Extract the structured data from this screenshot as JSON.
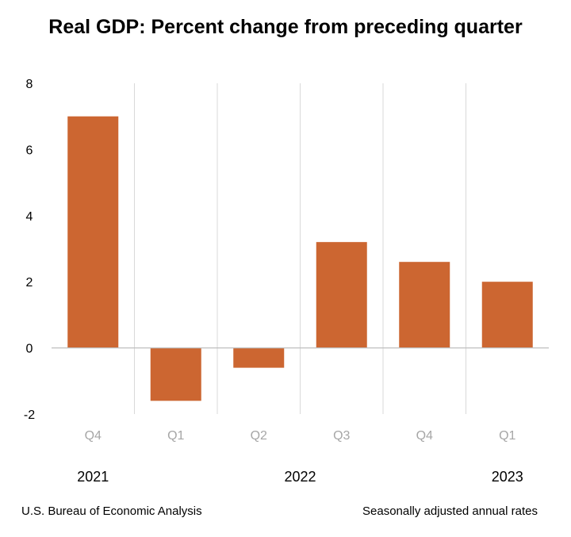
{
  "chart_data": {
    "type": "bar",
    "title": "Real GDP:  Percent change from preceding quarter",
    "categories": [
      "Q4",
      "Q1",
      "Q2",
      "Q3",
      "Q4",
      "Q1"
    ],
    "years": [
      {
        "label": "2021",
        "under_index": 0
      },
      {
        "label": "2022",
        "under_index": 2.5
      },
      {
        "label": "2023",
        "under_index": 5
      }
    ],
    "values": [
      7.0,
      -1.6,
      -0.6,
      3.2,
      2.6,
      2.0
    ],
    "ylim": [
      -2,
      8
    ],
    "yticks": [
      8,
      6,
      4,
      2,
      0,
      -2
    ],
    "bar_color": "#CC6631",
    "grid": "vertical separators between quarters",
    "legend": "none",
    "xlabel": "",
    "ylabel": ""
  },
  "footer": {
    "source": "U.S. Bureau of Economic Analysis",
    "note": "Seasonally adjusted annual rates"
  }
}
